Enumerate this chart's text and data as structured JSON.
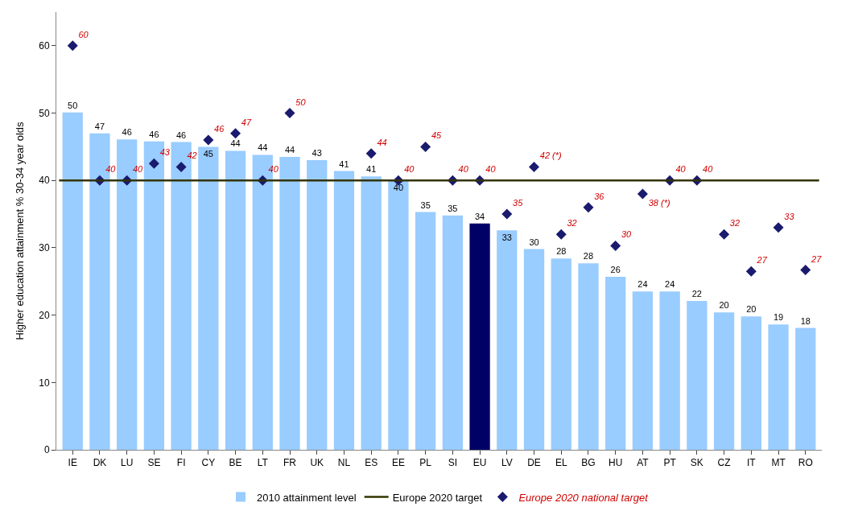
{
  "chart_data": {
    "type": "bar",
    "ylabel": "Higher education attainment % 30-34 year olds",
    "categories": [
      "IE",
      "DK",
      "LU",
      "SE",
      "FI",
      "CY",
      "BE",
      "LT",
      "FR",
      "UK",
      "NL",
      "ES",
      "EE",
      "PL",
      "SI",
      "EU",
      "LV",
      "DE",
      "EL",
      "BG",
      "HU",
      "AT",
      "PT",
      "SK",
      "CZ",
      "IT",
      "MT",
      "RO"
    ],
    "series": [
      {
        "name": "2010 attainment level",
        "colors": [
          "#99ccff",
          "#99ccff",
          "#99ccff",
          "#99ccff",
          "#99ccff",
          "#99ccff",
          "#99ccff",
          "#99ccff",
          "#99ccff",
          "#99ccff",
          "#99ccff",
          "#99ccff",
          "#99ccff",
          "#99ccff",
          "#99ccff",
          "#000066",
          "#99ccff",
          "#99ccff",
          "#99ccff",
          "#99ccff",
          "#99ccff",
          "#99ccff",
          "#99ccff",
          "#99ccff",
          "#99ccff",
          "#99ccff",
          "#99ccff",
          "#99ccff"
        ],
        "values": [
          50.1,
          47.0,
          46.1,
          45.8,
          45.7,
          45.0,
          44.4,
          43.8,
          43.5,
          43.0,
          41.4,
          40.6,
          40.0,
          35.3,
          34.8,
          33.6,
          32.6,
          29.8,
          28.4,
          27.7,
          25.7,
          23.5,
          23.5,
          22.1,
          20.4,
          19.8,
          18.6,
          18.1
        ],
        "value_labels": [
          "50",
          "47",
          "46",
          "46",
          "46",
          "45",
          "44",
          "44",
          "44",
          "43",
          "41",
          "41",
          "40",
          "35",
          "35",
          "34",
          "33",
          "30",
          "28",
          "28",
          "26",
          "24",
          "24",
          "22",
          "20",
          "20",
          "19",
          "18"
        ]
      },
      {
        "name": "Europe 2020 national target",
        "type": "scatter",
        "color": "#1a1a6e",
        "values": [
          60,
          40,
          40,
          42.5,
          42,
          46,
          47,
          40,
          50,
          null,
          null,
          44,
          40,
          45,
          40,
          40,
          35,
          42,
          32,
          36,
          30.3,
          38,
          40,
          40,
          32,
          26.5,
          33,
          26.7
        ],
        "value_labels": [
          "60",
          "40",
          "40",
          "43",
          "42",
          "46",
          "47",
          "40",
          "50",
          null,
          null,
          "44",
          "40",
          "45",
          "40",
          "40",
          "35",
          "42 (*)",
          "32",
          "36",
          "30",
          "38 (*)",
          "40",
          "40",
          "32",
          "27",
          "33",
          "27"
        ]
      }
    ],
    "ref_lines": [
      {
        "axis": "y",
        "value": 40,
        "label": "Europe 2020 target",
        "color": "#333300"
      }
    ],
    "ylim": [
      0,
      65
    ],
    "yticks": [
      0,
      10,
      20,
      30,
      40,
      50,
      60
    ],
    "legend": "bottom",
    "marker": "diamond"
  }
}
